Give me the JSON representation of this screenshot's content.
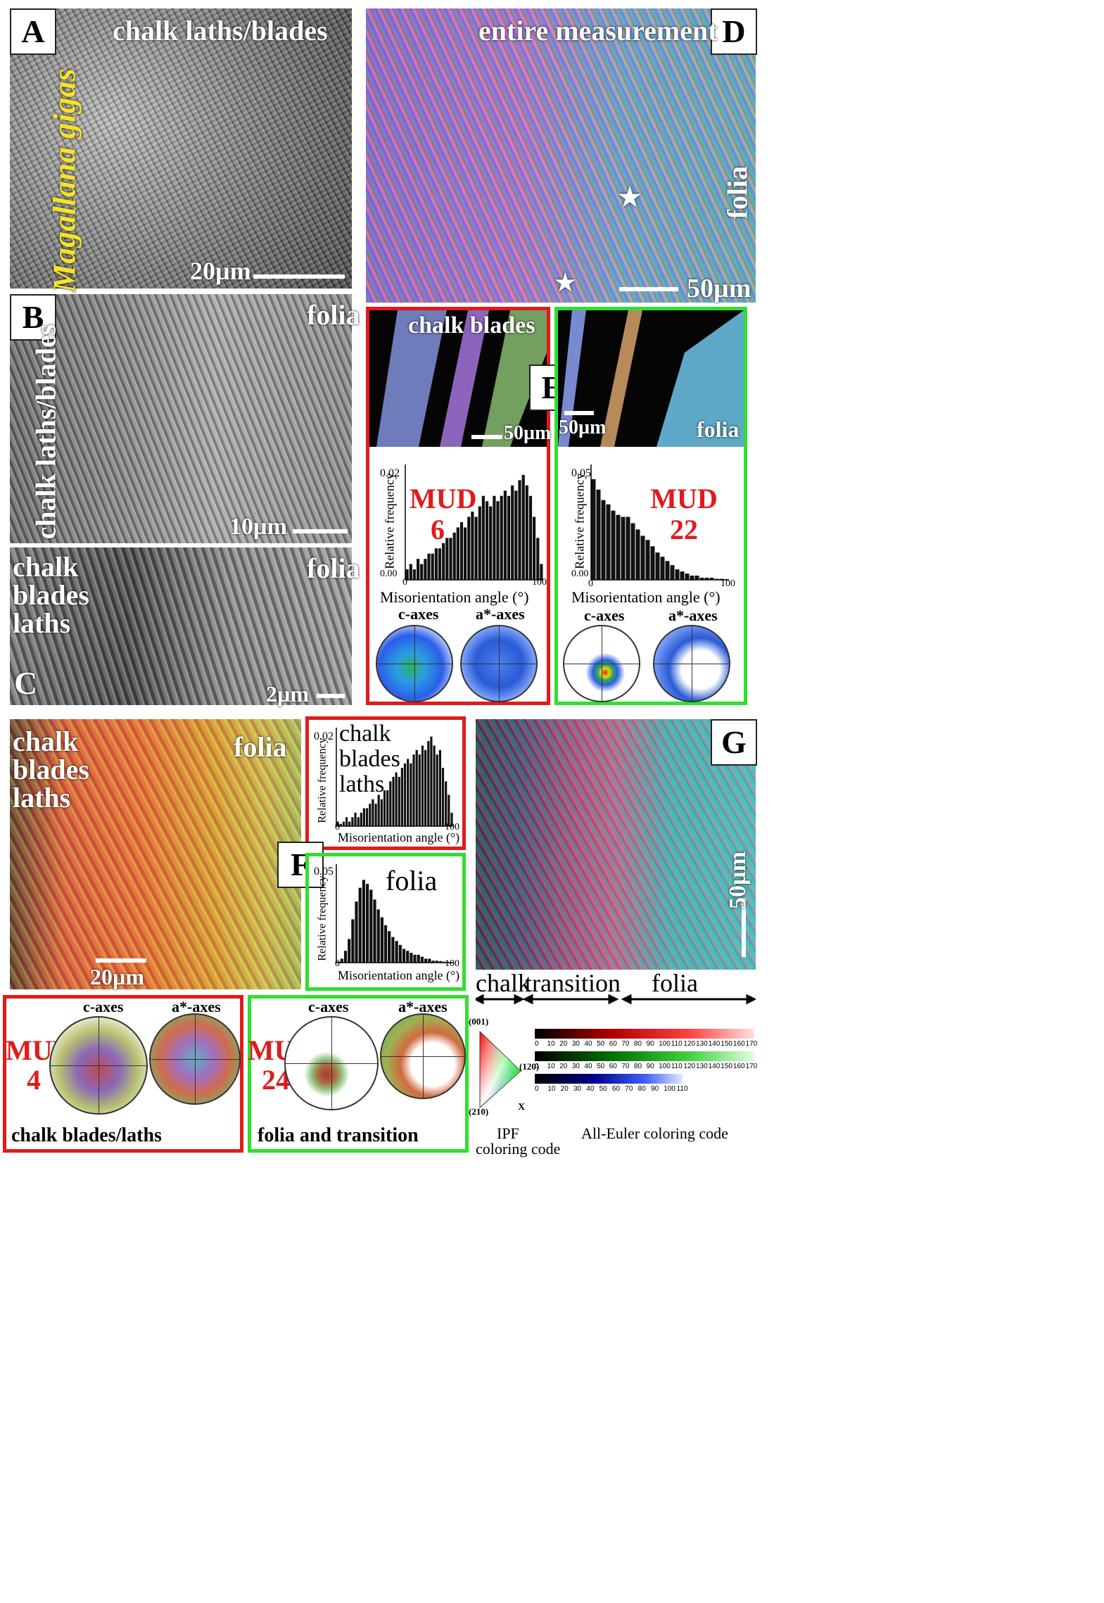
{
  "panels": {
    "A": {
      "letter": "A",
      "title": "chalk laths/blades",
      "species": "Magallana gigas",
      "scale": "20µm"
    },
    "B": {
      "letter": "B",
      "label_left": "chalk laths/blades",
      "label_right": "folia",
      "scale": "10µm"
    },
    "C": {
      "letter": "C",
      "label_left_1": "chalk",
      "label_left_2": "blades",
      "label_left_3": "laths",
      "label_right": "folia",
      "scale": "2µm"
    },
    "D": {
      "letter": "D",
      "title": "entire measurement",
      "label_right": "folia",
      "scale": "50µm",
      "star": "★"
    },
    "E": {
      "letter": "E",
      "left": {
        "map_label": "chalk blades",
        "scale": "50µm",
        "mud_label": "MUD",
        "mud_value": "6",
        "ylabel": "Relative frequency",
        "ytick": "0.02",
        "yzero": "0.00",
        "xtick0": "0",
        "xtick1": "100",
        "xlabel": "Misorientation angle (°)",
        "pole1": "c-axes",
        "pole2": "a*-axes"
      },
      "right": {
        "map_label": "folia",
        "scale": "50µm",
        "mud_label": "MUD",
        "mud_value": "22",
        "ylabel": "Relative frequency",
        "ytick": "0.05",
        "yzero": "0.00",
        "xtick0": "0",
        "xtick1": "100",
        "xlabel": "Misorientation angle (°)",
        "pole1": "c-axes",
        "pole2": "a*-axes"
      }
    },
    "F": {
      "letter": "F",
      "map_label_left_1": "chalk",
      "map_label_left_2": "blades",
      "map_label_left_3": "laths",
      "map_label_right": "folia",
      "scale": "20µm",
      "hist_top": {
        "label_1": "chalk",
        "label_2": "blades",
        "label_3": "laths",
        "ylabel": "Relative frequency",
        "ytick": "0.02",
        "xtick0": "0",
        "xtick1": "100",
        "xlabel": "Misorientation angle (°)"
      },
      "hist_bottom": {
        "label": "folia",
        "ylabel": "Relative frequency",
        "ytick": "0.05",
        "xtick0": "0",
        "xtick1": "100",
        "xlabel": "Misorientation angle (°)"
      },
      "pole_left": {
        "mud_label": "MUD",
        "mud_value": "4",
        "pole1": "c-axes",
        "pole2": "a*-axes",
        "caption": "chalk blades/laths"
      },
      "pole_right": {
        "mud_label": "MUD",
        "mud_value": "24",
        "pole1": "c-axes",
        "pole2": "a*-axes",
        "caption": "folia and transition"
      }
    },
    "G": {
      "letter": "G",
      "scale": "50µm",
      "zone1": "chalk",
      "zone2": "transition",
      "zone3": "folia"
    }
  },
  "legend": {
    "ipf_label_1": "IPF",
    "ipf_label_2": "coloring code",
    "ipf_001": "(001)",
    "ipf_120": "(120)",
    "ipf_210": "(210)",
    "ipf_x": "X",
    "euler_label": "All-Euler coloring code",
    "ticks_170": [
      "0",
      "10",
      "20",
      "30",
      "40",
      "50",
      "60",
      "70",
      "80",
      "90",
      "100",
      "110",
      "120",
      "130",
      "140",
      "150",
      "160",
      "170"
    ],
    "ticks_110": [
      "0",
      "10",
      "20",
      "30",
      "40",
      "50",
      "60",
      "70",
      "80",
      "90",
      "100",
      "110"
    ]
  },
  "chart_data": [
    {
      "type": "bar",
      "name": "E-left",
      "xlim": [
        0,
        100
      ],
      "ylim": [
        0,
        0.022
      ],
      "values": [
        0.002,
        0.003,
        0.002,
        0.004,
        0.003,
        0.004,
        0.005,
        0.005,
        0.006,
        0.006,
        0.007,
        0.008,
        0.008,
        0.009,
        0.01,
        0.011,
        0.01,
        0.012,
        0.013,
        0.012,
        0.014,
        0.016,
        0.015,
        0.014,
        0.016,
        0.015,
        0.016,
        0.017,
        0.016,
        0.018,
        0.017,
        0.019,
        0.02,
        0.018,
        0.016,
        0.012,
        0.008,
        0.003
      ]
    },
    {
      "type": "bar",
      "name": "E-right",
      "xlim": [
        0,
        100
      ],
      "ylim": [
        0,
        0.055
      ],
      "values": [
        0.048,
        0.043,
        0.038,
        0.036,
        0.033,
        0.031,
        0.03,
        0.03,
        0.027,
        0.024,
        0.021,
        0.019,
        0.016,
        0.013,
        0.011,
        0.009,
        0.007,
        0.005,
        0.004,
        0.003,
        0.002,
        0.002,
        0.001,
        0.001,
        0.001,
        0.0005,
        0.0005,
        0.0003
      ]
    },
    {
      "type": "bar",
      "name": "F-top",
      "xlim": [
        0,
        100
      ],
      "ylim": [
        0,
        0.022
      ],
      "values": [
        0.001,
        0.0005,
        0.001,
        0.002,
        0.001,
        0.002,
        0.003,
        0.002,
        0.003,
        0.004,
        0.004,
        0.005,
        0.006,
        0.005,
        0.007,
        0.006,
        0.008,
        0.008,
        0.01,
        0.011,
        0.012,
        0.011,
        0.013,
        0.014,
        0.015,
        0.014,
        0.016,
        0.017,
        0.016,
        0.018,
        0.017,
        0.019,
        0.02,
        0.018,
        0.016,
        0.017,
        0.013,
        0.01,
        0.007,
        0.003
      ]
    },
    {
      "type": "bar",
      "name": "F-bottom",
      "xlim": [
        0,
        100
      ],
      "ylim": [
        0,
        0.05
      ],
      "values": [
        0.0005,
        0.002,
        0.006,
        0.012,
        0.022,
        0.031,
        0.038,
        0.042,
        0.04,
        0.037,
        0.032,
        0.027,
        0.023,
        0.019,
        0.016,
        0.013,
        0.011,
        0.009,
        0.007,
        0.006,
        0.005,
        0.004,
        0.004,
        0.003,
        0.002,
        0.002,
        0.001,
        0.001,
        0.0008,
        0.0005,
        0.0004,
        0.0003
      ]
    }
  ]
}
